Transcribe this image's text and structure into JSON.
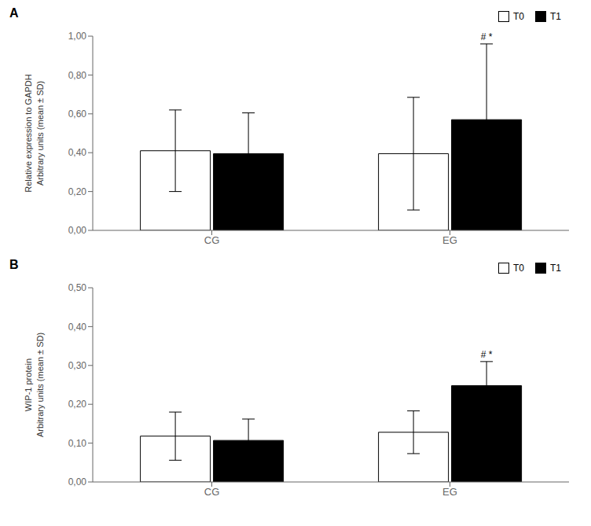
{
  "chart_data": [
    {
      "type": "bar",
      "title": "A",
      "categories": [
        "CG",
        "EG"
      ],
      "series": [
        {
          "name": "T0",
          "color": "white",
          "values": [
            0.41,
            0.395
          ],
          "errors": [
            0.21,
            0.29
          ]
        },
        {
          "name": "T1",
          "color": "black",
          "values": [
            0.395,
            0.57
          ],
          "errors": [
            0.21,
            0.39
          ]
        }
      ],
      "ylabel": "Relative expression to GAPDH\nArbitrary units (mean ± SD)",
      "ylim": [
        0.0,
        1.0
      ],
      "yticks": [
        {
          "value": 0.0,
          "label": "0,00"
        },
        {
          "value": 0.2,
          "label": "0,20"
        },
        {
          "value": 0.4,
          "label": "0,40"
        },
        {
          "value": 0.6,
          "label": "0,60"
        },
        {
          "value": 0.8,
          "label": "0,80"
        },
        {
          "value": 1.0,
          "label": "1,00"
        }
      ],
      "grid": false,
      "legend": "upper right",
      "annotations": [
        {
          "category": "EG",
          "series": "T1",
          "text": "# *"
        }
      ]
    },
    {
      "type": "bar",
      "title": "B",
      "categories": [
        "CG",
        "EG"
      ],
      "series": [
        {
          "name": "T0",
          "color": "white",
          "values": [
            0.118,
            0.128
          ],
          "errors": [
            0.062,
            0.055
          ]
        },
        {
          "name": "T1",
          "color": "black",
          "values": [
            0.107,
            0.248
          ],
          "errors": [
            0.055,
            0.062
          ]
        }
      ],
      "ylabel": "WIP-1 protein\nArbitrary units (mean ± SD)",
      "ylim": [
        0.0,
        0.5
      ],
      "yticks": [
        {
          "value": 0.0,
          "label": "0,00"
        },
        {
          "value": 0.1,
          "label": "0,10"
        },
        {
          "value": 0.2,
          "label": "0,20"
        },
        {
          "value": 0.3,
          "label": "0,30"
        },
        {
          "value": 0.4,
          "label": "0,40"
        },
        {
          "value": 0.5,
          "label": "0,50"
        }
      ],
      "grid": false,
      "legend": "upper right",
      "annotations": [
        {
          "category": "EG",
          "series": "T1",
          "text": "# *"
        }
      ]
    }
  ]
}
